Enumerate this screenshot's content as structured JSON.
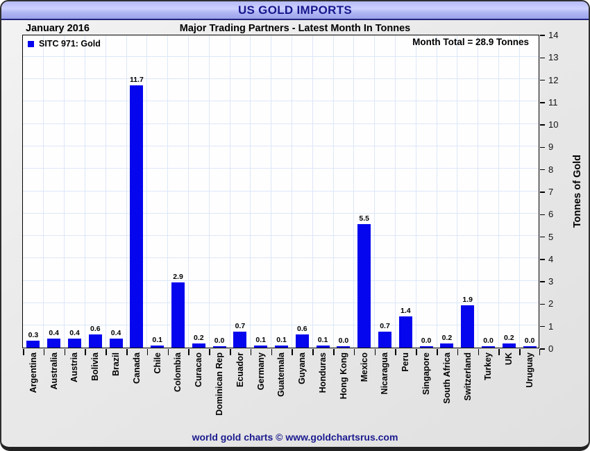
{
  "window": {
    "title": "US GOLD IMPORTS"
  },
  "header": {
    "date_label": "January 2016",
    "subtitle": "Major Trading Partners - Latest Month In Tonnes"
  },
  "legend": {
    "label": "SITC 971: Gold"
  },
  "annotation": {
    "month_total": "Month Total = 28.9 Tonnes"
  },
  "footer": {
    "credit": "world gold charts © www.goldchartsrus.com"
  },
  "colors": {
    "bar": "#0505ee",
    "grid": "#dbe7f7",
    "accent_navy": "#17178c",
    "titlebar_mid": "#cdd1ff",
    "plot_bg": "#ffffff",
    "frame_bg": "#e9e9e9"
  },
  "chart_data": {
    "type": "bar",
    "title": "US GOLD IMPORTS",
    "subtitle": "Major Trading Partners - Latest Month In Tonnes",
    "period": "January 2016",
    "series_name": "SITC 971: Gold",
    "categories": [
      "Argentina",
      "Australia",
      "Austria",
      "Bolivia",
      "Brazil",
      "Canada",
      "Chile",
      "Colombia",
      "Curacao",
      "Dominican Rep",
      "Ecuador",
      "Germany",
      "Guatemala",
      "Guyana",
      "Honduras",
      "Hong Kong",
      "Mexico",
      "Nicaragua",
      "Peru",
      "Singapore",
      "South Africa",
      "Switzerland",
      "Turkey",
      "UK",
      "Uruguay"
    ],
    "values": [
      0.3,
      0.4,
      0.4,
      0.6,
      0.4,
      11.7,
      0.1,
      2.9,
      0.2,
      0.0,
      0.7,
      0.1,
      0.1,
      0.6,
      0.1,
      0.0,
      5.5,
      0.7,
      1.4,
      0.0,
      0.2,
      1.9,
      0.0,
      0.2,
      0.0
    ],
    "xlabel": "",
    "ylabel": "Tonnes of Gold",
    "ylim": [
      0,
      14
    ],
    "ytick_step": 1,
    "grid": true,
    "value_labels": true,
    "legend_position": "top-left",
    "month_total": 28.9
  }
}
